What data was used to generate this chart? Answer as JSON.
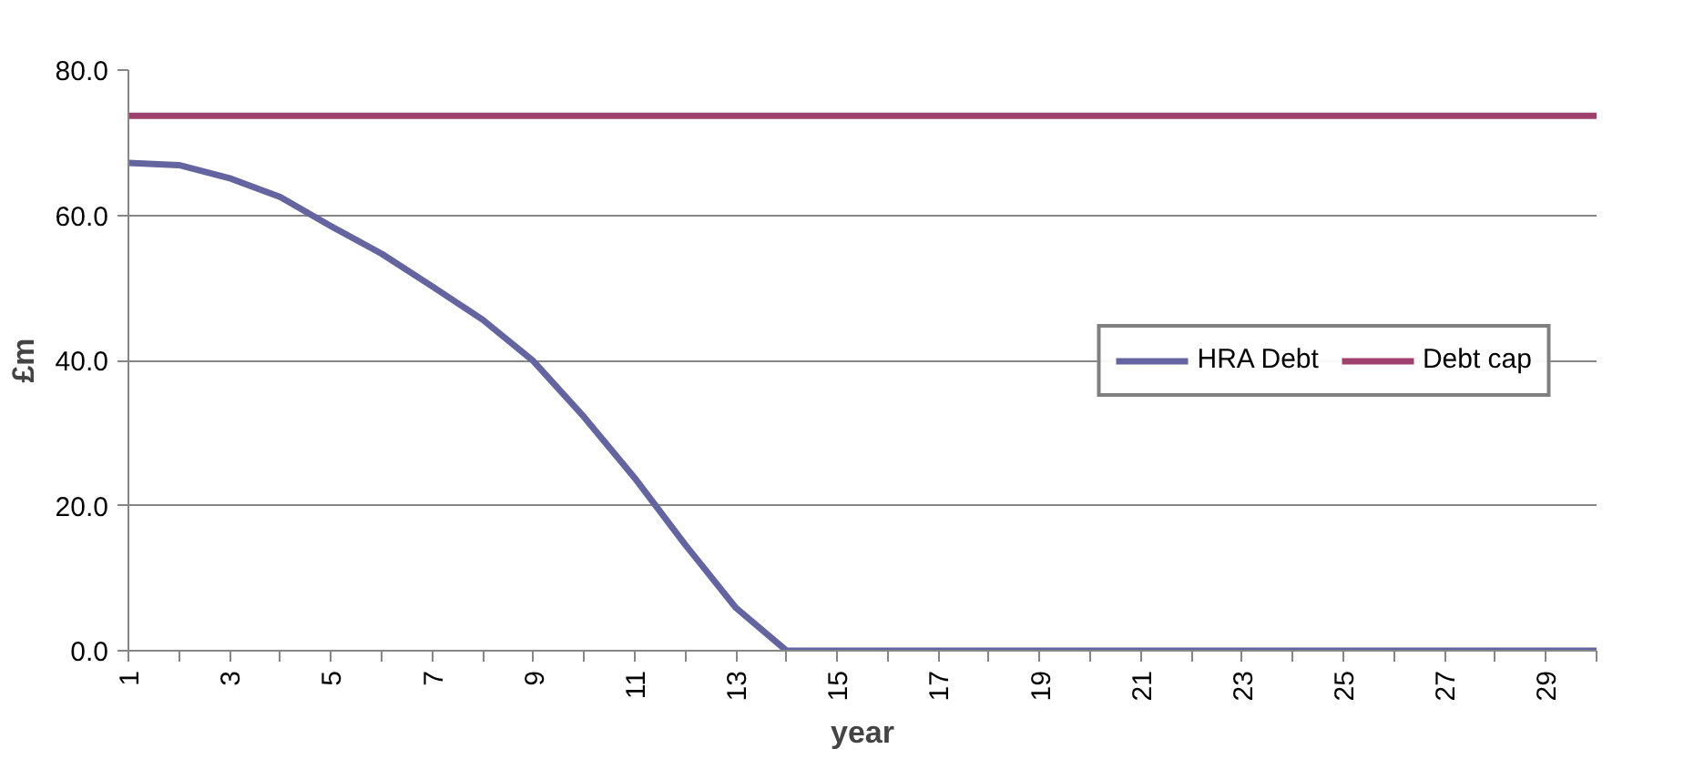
{
  "chart_data": {
    "type": "line",
    "xlabel": "year",
    "ylabel": "£m",
    "categories": [
      "1",
      null,
      "3",
      null,
      "5",
      null,
      "7",
      null,
      "9",
      null,
      "11",
      null,
      "13",
      null,
      "15",
      null,
      "17",
      null,
      "19",
      null,
      "21",
      null,
      "23",
      null,
      "25",
      null,
      "27",
      null,
      "29",
      null
    ],
    "series": [
      {
        "name": "HRA Debt",
        "color": "#6464a0",
        "values": [
          67.2,
          66.9,
          65.1,
          62.5,
          58.5,
          54.7,
          50.2,
          45.6,
          39.9,
          32.2,
          23.8,
          14.6,
          5.9,
          0,
          0,
          0,
          0,
          0,
          0,
          0,
          0,
          0,
          0,
          0,
          0,
          0,
          0,
          0,
          0,
          0
        ]
      },
      {
        "name": "Debt cap",
        "color": "#a0406e",
        "values": [
          73.7,
          73.7,
          73.7,
          73.7,
          73.7,
          73.7,
          73.7,
          73.7,
          73.7,
          73.7,
          73.7,
          73.7,
          73.7,
          73.7,
          73.7,
          73.7,
          73.7,
          73.7,
          73.7,
          73.7,
          73.7,
          73.7,
          73.7,
          73.7,
          73.7,
          73.7,
          73.7,
          73.7,
          73.7,
          73.7
        ]
      }
    ],
    "ylim": [
      0,
      80
    ],
    "yticks": [
      {
        "value": 0,
        "label": "0.0"
      },
      {
        "value": 20,
        "label": "20.0"
      },
      {
        "value": 40,
        "label": "40.0"
      },
      {
        "value": 60,
        "label": "60.0"
      },
      {
        "value": 80,
        "label": "80.0"
      }
    ],
    "grid": "y",
    "legend": "right",
    "marker": "none",
    "line_style": "solid"
  }
}
